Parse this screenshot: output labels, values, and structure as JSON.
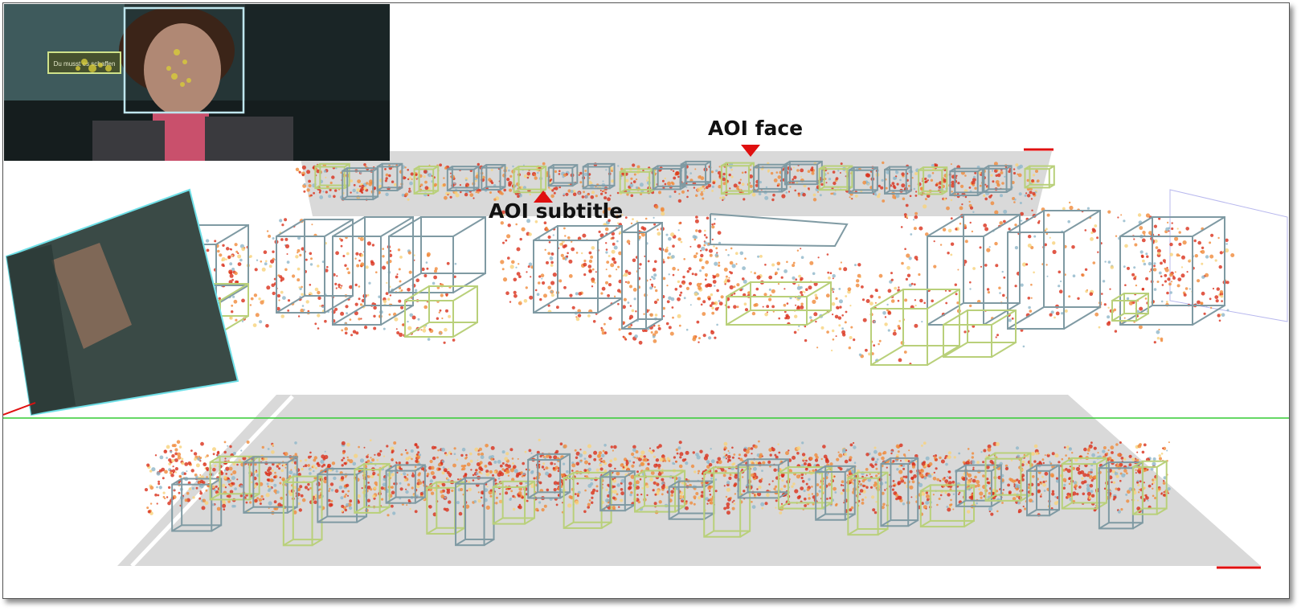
{
  "annotations": {
    "aoi_face": "AOI face",
    "aoi_subtitle": "AOI subtitle"
  },
  "video_frame": {
    "subtitle_box_text": "Du musst es schaffen",
    "subject": "face-in-video-frame"
  },
  "colors": {
    "marker": "#e01010",
    "plane": "#d9d9d9",
    "aoi_face_box": "#7f9aa3",
    "aoi_subtitle_box": "#b9d07a",
    "gaze_hot": "#d9301a",
    "gaze_warm": "#f08a3a",
    "gaze_mild": "#f7d27a",
    "gaze_cool": "#8fb6c9",
    "ground_line": "#33cc33"
  }
}
